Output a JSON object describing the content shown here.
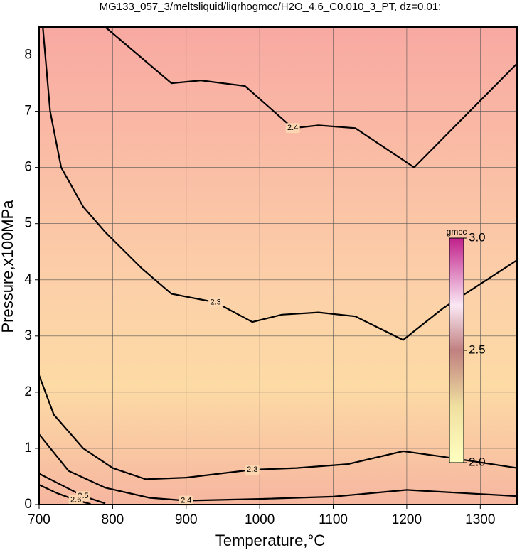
{
  "chart_data": {
    "type": "contour",
    "title": "MG133_057_3/meltsliquid/liqrhogmcc/H2O_4.6_C0.010_3_PT, dz=0.01:",
    "xlabel": "Temperature,°C",
    "ylabel": "Pressure,x100MPa",
    "xlim": [
      700,
      1350
    ],
    "xticks": [
      700,
      800,
      900,
      1000,
      1100,
      1200,
      1300
    ],
    "ylim": [
      0,
      8.5
    ],
    "yticks": [
      0,
      1,
      2,
      3,
      4,
      5,
      6,
      7,
      8
    ],
    "grid": true,
    "contours": [
      {
        "level": 2.4,
        "label": "2.4",
        "x": [
          790,
          880,
          920,
          980,
          1045,
          1080,
          1130,
          1210,
          1350
        ],
        "y": [
          8.5,
          7.5,
          7.55,
          7.45,
          6.7,
          6.75,
          6.7,
          6.0,
          7.85
        ]
      },
      {
        "level": 2.3,
        "label": "2.3",
        "x": [
          705,
          715,
          730,
          760,
          790,
          840,
          880,
          940,
          990,
          1030,
          1080,
          1130,
          1195,
          1250,
          1350
        ],
        "y": [
          8.5,
          7.0,
          6.0,
          5.3,
          4.85,
          4.2,
          3.75,
          3.6,
          3.25,
          3.38,
          3.42,
          3.35,
          2.93,
          3.5,
          4.35
        ]
      },
      {
        "level": 2.3,
        "label": "2.3",
        "x": [
          700,
          720,
          760,
          800,
          845,
          900,
          990,
          1050,
          1120,
          1195,
          1250,
          1350
        ],
        "y": [
          2.3,
          1.6,
          1.0,
          0.65,
          0.45,
          0.48,
          0.62,
          0.65,
          0.72,
          0.95,
          0.85,
          0.65
        ]
      },
      {
        "level": 2.4,
        "label": "2.4",
        "x": [
          700,
          740,
          790,
          850,
          900,
          1000,
          1100,
          1200,
          1350
        ],
        "y": [
          1.25,
          0.6,
          0.3,
          0.12,
          0.07,
          0.1,
          0.14,
          0.26,
          0.15
        ]
      },
      {
        "level": 2.5,
        "label": "2.5",
        "x": [
          700,
          730,
          760,
          790
        ],
        "y": [
          0.55,
          0.35,
          0.15,
          0.02
        ]
      },
      {
        "level": 2.6,
        "label": "2.6",
        "x": [
          700,
          725,
          750,
          770
        ],
        "y": [
          0.35,
          0.2,
          0.08,
          0.01
        ]
      }
    ],
    "colorbar": {
      "label": "gmcc",
      "lim": [
        2.0,
        3.0
      ],
      "ticks": [
        {
          "value": 3.0,
          "label": "3.0"
        },
        {
          "value": 2.5,
          "label": "2.5"
        },
        {
          "value": 2.0,
          "label": "2.0"
        }
      ]
    }
  }
}
